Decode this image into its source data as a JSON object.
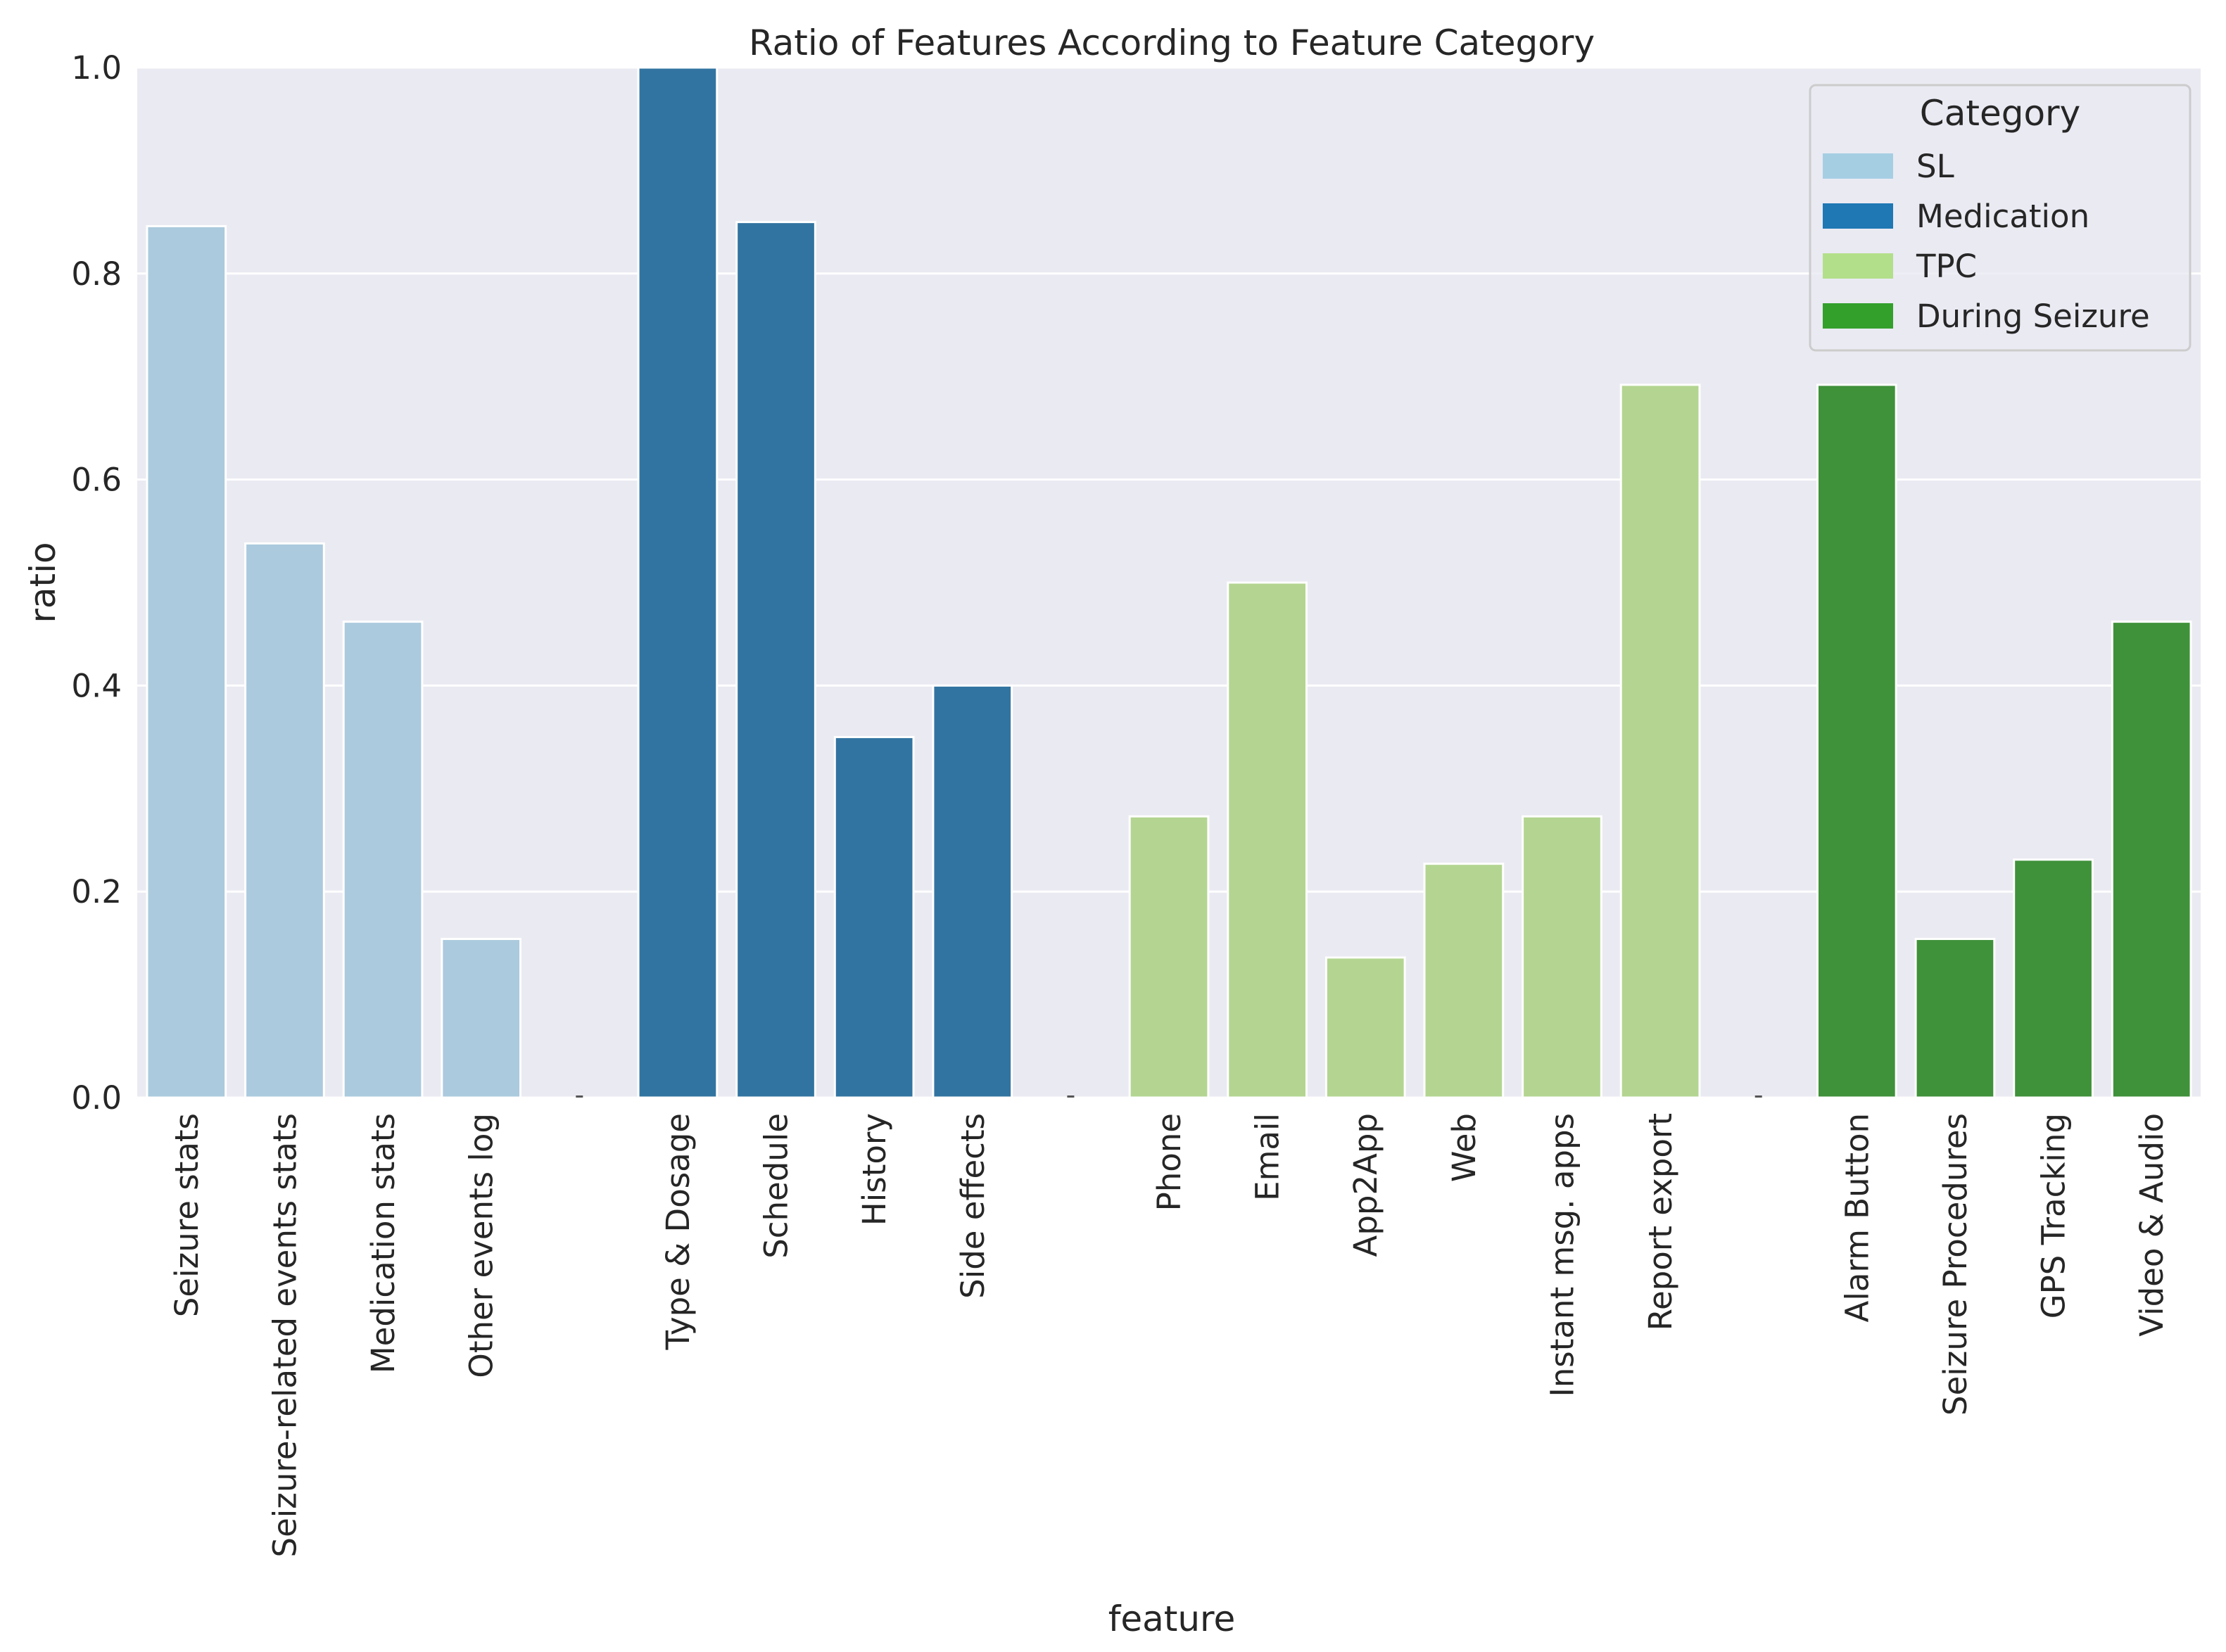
{
  "chart_data": {
    "type": "bar",
    "title": "Ratio of Features According to Feature Category",
    "xlabel": "feature",
    "ylabel": "ratio",
    "ylim": [
      0,
      1.0
    ],
    "yticks": [
      "0.0",
      "0.2",
      "0.4",
      "0.6",
      "0.8",
      "1.0"
    ],
    "grid": true,
    "legend": {
      "title": "Category",
      "placement": "top-right"
    },
    "categories": [
      "Seizure stats",
      "Seizure-related events stats",
      "Medication stats",
      "Other events log",
      "",
      "Type & Dosage",
      "Schedule",
      "History",
      "Side effects",
      "",
      "Phone",
      "Email",
      "App2App",
      "Web",
      "Instant msg. apps",
      "Report export",
      "",
      "Alarm Button",
      "Seizure Procedures",
      "GPS Tracking",
      "Video & Audio"
    ],
    "series": [
      {
        "name": "SL",
        "color": "#a6cee3",
        "bar_color": "#abcadd",
        "values": [
          0.846,
          0.538,
          0.462,
          0.154,
          null,
          null,
          null,
          null,
          null,
          null,
          null,
          null,
          null,
          null,
          null,
          null,
          null,
          null,
          null,
          null,
          null
        ]
      },
      {
        "name": "Medication",
        "color": "#1f78b4",
        "bar_color": "#3274a1",
        "values": [
          null,
          null,
          null,
          null,
          null,
          1.0,
          0.85,
          0.35,
          0.4,
          null,
          null,
          null,
          null,
          null,
          null,
          null,
          null,
          null,
          null,
          null,
          null
        ]
      },
      {
        "name": "TPC",
        "color": "#b2df8a",
        "bar_color": "#b3d591",
        "values": [
          null,
          null,
          null,
          null,
          null,
          null,
          null,
          null,
          null,
          null,
          0.273,
          0.5,
          0.136,
          0.227,
          0.273,
          0.692,
          null,
          null,
          null,
          null,
          null
        ]
      },
      {
        "name": "During Seizure",
        "color": "#33a02c",
        "bar_color": "#3f913a",
        "values": [
          null,
          null,
          null,
          null,
          null,
          null,
          null,
          null,
          null,
          null,
          null,
          null,
          null,
          null,
          null,
          null,
          null,
          0.692,
          0.154,
          0.231,
          0.462
        ]
      }
    ]
  }
}
